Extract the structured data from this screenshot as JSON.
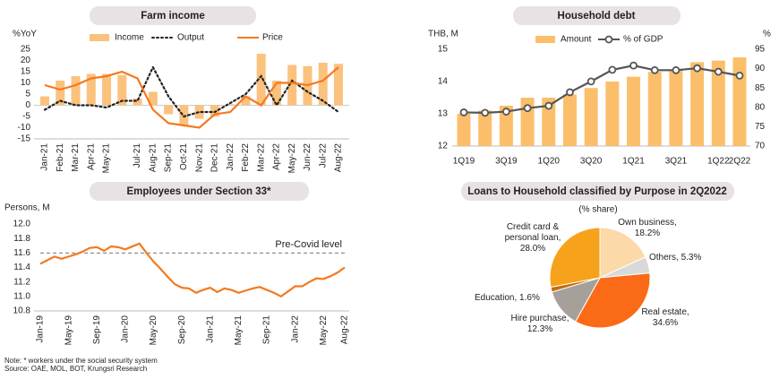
{
  "chart_data": [
    {
      "type": "combo",
      "title": "Farm income",
      "y_label": "%YoY",
      "categories": [
        "Jan-21",
        "Feb-21",
        "Mar-21",
        "Apr-21",
        "May-21",
        null,
        "Jul-21",
        "Aug-21",
        "Sep-21",
        "Oct-21",
        "Nov-21",
        "Dec-21",
        "Jan-22",
        "Feb-22",
        "Mar-22",
        "Apr-22",
        "May-22",
        "Jun-22",
        "Jul-22",
        "Aug-22"
      ],
      "series": [
        {
          "name": "Income",
          "type": "bar",
          "color": "#fbc27e",
          "values": [
            4,
            11,
            13,
            14,
            14,
            13.5,
            3,
            6,
            -4,
            -9,
            -6,
            -5,
            0.5,
            4,
            23,
            11,
            18,
            17.5,
            19,
            18.5
          ]
        },
        {
          "name": "Output",
          "type": "line",
          "dash": "dotted",
          "color": "#222222",
          "values": [
            -2,
            2,
            0,
            0,
            -1,
            2,
            2,
            17,
            4,
            -5,
            -3,
            -3,
            1,
            5,
            13,
            0,
            11,
            6,
            2,
            -3
          ]
        },
        {
          "name": "Price",
          "type": "line",
          "color": "#f47920",
          "values": [
            9,
            7,
            9,
            12,
            13,
            15,
            12,
            -2,
            -8,
            -9,
            -10,
            -4,
            -3,
            4,
            0,
            10,
            10,
            9,
            11,
            17
          ]
        }
      ],
      "ylim": [
        -15,
        25
      ],
      "yticks": [
        -15,
        -10,
        -5,
        0,
        5,
        10,
        15,
        20,
        25
      ]
    },
    {
      "type": "combo",
      "title": "Household debt",
      "y_label": "THB, M",
      "y2_label": "%",
      "categories": [
        "1Q19",
        null,
        "3Q19",
        null,
        "1Q20",
        null,
        "3Q20",
        null,
        "1Q21",
        null,
        "3Q21",
        null,
        "1Q22",
        "2Q22"
      ],
      "series": [
        {
          "name": "Amount",
          "type": "bar",
          "color": "#fbbf6b",
          "values": [
            13.0,
            13.1,
            13.25,
            13.5,
            13.5,
            13.6,
            13.8,
            14.0,
            14.15,
            14.3,
            14.35,
            14.6,
            14.65,
            14.75
          ]
        },
        {
          "name": "% of GDP",
          "type": "line",
          "marker": "circle",
          "axis": "y2",
          "color": "#555555",
          "values": [
            78.7,
            78.6,
            78.9,
            79.8,
            80.4,
            83.9,
            86.7,
            89.7,
            90.8,
            89.6,
            89.6,
            90.1,
            89.2,
            88.2
          ]
        }
      ],
      "ylim": [
        12,
        15
      ],
      "yticks": [
        12,
        13,
        14,
        15
      ],
      "y2lim": [
        70,
        95
      ],
      "y2ticks": [
        70,
        75,
        80,
        85,
        90,
        95
      ]
    },
    {
      "type": "line",
      "title": "Employees under Section 33*",
      "y_label": "Persons, M",
      "categories": [
        "Jan-19",
        null,
        null,
        null,
        "May-19",
        null,
        null,
        null,
        "Sep-19",
        null,
        null,
        null,
        "Jan-20",
        null,
        null,
        null,
        "May-20",
        null,
        null,
        null,
        "Sep-20",
        null,
        null,
        null,
        "Jan-21",
        null,
        null,
        null,
        "May-21",
        null,
        null,
        null,
        "Sep-21",
        null,
        null,
        null,
        "Jan-22",
        null,
        null,
        null,
        "May-22",
        null,
        null,
        "Aug-22"
      ],
      "series": [
        {
          "name": "Employees",
          "type": "line",
          "color": "#f47920",
          "values": [
            11.45,
            11.5,
            11.55,
            11.52,
            11.55,
            11.58,
            11.62,
            11.67,
            11.68,
            11.63,
            11.69,
            11.68,
            11.65,
            11.69,
            11.73,
            11.6,
            11.48,
            11.38,
            11.27,
            11.17,
            11.12,
            11.11,
            11.05,
            11.09,
            11.12,
            11.06,
            11.11,
            11.09,
            11.05,
            11.08,
            11.11,
            11.13,
            11.09,
            11.05,
            11.0,
            11.07,
            11.14,
            11.14,
            11.2,
            11.25,
            11.24,
            11.28,
            11.33,
            11.4
          ]
        }
      ],
      "reference_line": {
        "value": 11.6,
        "label": "Pre-Covid level"
      },
      "ylim": [
        10.8,
        12.0
      ],
      "yticks": [
        10.8,
        {
          "value": 11.0,
          "label": "11.0"
        },
        11.2,
        11.4,
        11.6,
        11.8,
        {
          "value": 12.0,
          "label": "12.0"
        }
      ]
    },
    {
      "type": "pie",
      "title": "Loans to Household classified by Purpose in 2Q2022",
      "subtitle": "(% share)",
      "categories": [
        "Own business,",
        "Others,",
        "Real estate,",
        "Hire purchase,",
        "Education,",
        "Credit card & personal loan,"
      ],
      "values": [
        18.2,
        5.3,
        34.6,
        12.3,
        1.6,
        28
      ],
      "value_labels": [
        "18.2%",
        "5.3%",
        "34.6%",
        "12.3%",
        "1.6%",
        "28.0%"
      ],
      "colors": [
        "#fcd9a8",
        "#d9d9d9",
        "#fb6a16",
        "#a6a09a",
        "#c46e0c",
        "#f7a21b"
      ]
    }
  ],
  "note": "Note: *  workers under the social security system",
  "source": "Source: OAE, MOL, BOT, Krungsri Research"
}
